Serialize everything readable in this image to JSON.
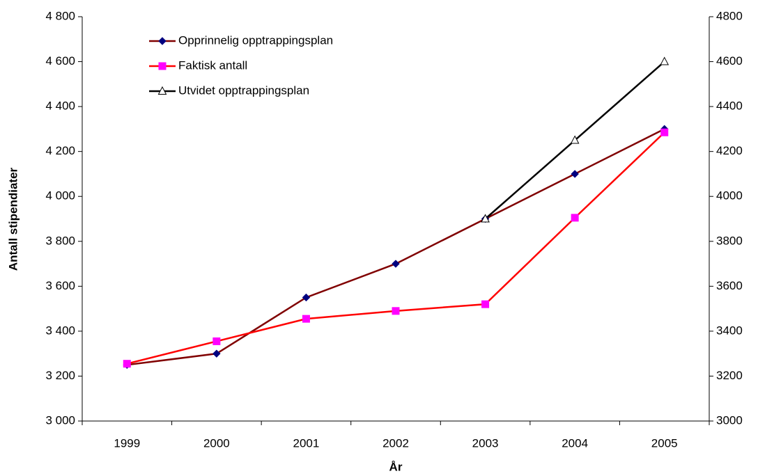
{
  "chart_data": {
    "type": "line",
    "y_label": "Antall stipendiater",
    "x_label": "År",
    "categories": [
      "1999",
      "2000",
      "2001",
      "2002",
      "2003",
      "2004",
      "2005"
    ],
    "series": [
      {
        "name": "Opprinnelig opptrappingsplan",
        "color": "#800000",
        "marker_color": "#000080",
        "marker": "diamond",
        "values": [
          3250,
          3300,
          3550,
          3700,
          3900,
          4100,
          4300
        ]
      },
      {
        "name": "Faktisk antall",
        "color": "#ff0000",
        "marker_color": "#ff00ff",
        "marker": "square",
        "values": [
          3255,
          3355,
          3455,
          3490,
          3520,
          3905,
          4285
        ]
      },
      {
        "name": "Utvidet opptrappingsplan",
        "color": "#000000",
        "marker_color": "#ffffff",
        "marker": "triangle",
        "values": [
          null,
          null,
          null,
          null,
          3900,
          4250,
          4600
        ]
      }
    ],
    "ylim": [
      3000,
      4800
    ],
    "yticks": [
      {
        "value": 3000,
        "label": "3 000"
      },
      {
        "value": 3200,
        "label": "3 200"
      },
      {
        "value": 3400,
        "label": "3 400"
      },
      {
        "value": 3600,
        "label": "3 600"
      },
      {
        "value": 3800,
        "label": "3 800"
      },
      {
        "value": 4000,
        "label": "4 000"
      },
      {
        "value": 4200,
        "label": "4 200"
      },
      {
        "value": 4400,
        "label": "4 400"
      },
      {
        "value": 4600,
        "label": "4 600"
      },
      {
        "value": 4800,
        "label": "4 800"
      }
    ],
    "y2lim": [
      3000,
      4800
    ],
    "y2ticks": [
      3000,
      3200,
      3400,
      3600,
      3800,
      4000,
      4200,
      4400,
      4600,
      4800
    ],
    "legend": "upper left"
  }
}
